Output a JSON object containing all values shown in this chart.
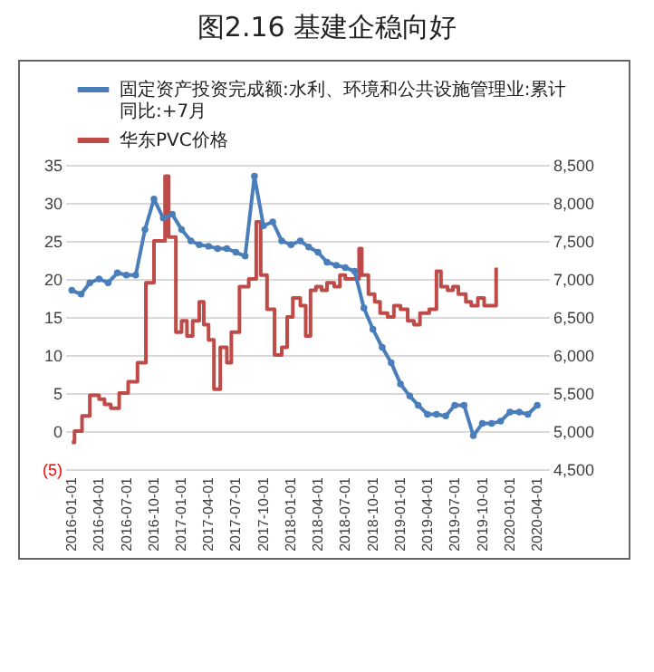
{
  "chart_data": {
    "type": "line",
    "title": "图2.16  基建企稳向好",
    "ylim": [
      -5,
      35
    ],
    "yticks": [
      {
        "value": -5,
        "label": "(5)"
      },
      0,
      5,
      10,
      15,
      20,
      25,
      30,
      35
    ],
    "y2lim": [
      4500,
      8500
    ],
    "y2ticks": [
      {
        "value": 4500,
        "label": "4,500"
      },
      {
        "value": 5000,
        "label": "5,000"
      },
      {
        "value": 5500,
        "label": "5,500"
      },
      {
        "value": 6000,
        "label": "6,000"
      },
      {
        "value": 6500,
        "label": "6,500"
      },
      {
        "value": 7000,
        "label": "7,000"
      },
      {
        "value": 7500,
        "label": "7,500"
      },
      {
        "value": 8000,
        "label": "8,000"
      },
      {
        "value": 8500,
        "label": "8,500"
      }
    ],
    "xlim": [
      "2015-12-10",
      "2020-05-10"
    ],
    "xticks": [
      "2016-01-01",
      "2016-04-01",
      "2016-07-01",
      "2016-10-01",
      "2017-01-01",
      "2017-04-01",
      "2017-07-01",
      "2017-10-01",
      "2018-01-01",
      "2018-04-01",
      "2018-07-01",
      "2018-10-01",
      "2019-01-01",
      "2019-04-01",
      "2019-07-01",
      "2019-10-01",
      "2020-01-01",
      "2020-04-01"
    ],
    "grid": "y",
    "legend": "top left",
    "series": [
      {
        "name": "固定资产投资完成额:水利、环境和公共设施管理业:累计同比:+7月",
        "color": "#4a7ebb",
        "type": "line",
        "marker": "circle",
        "x": [
          "2016-01",
          "2016-02",
          "2016-03",
          "2016-04",
          "2016-05",
          "2016-06",
          "2016-07",
          "2016-08",
          "2016-09",
          "2016-10",
          "2016-11",
          "2016-12",
          "2017-01",
          "2017-02",
          "2017-03",
          "2017-04",
          "2017-05",
          "2017-06",
          "2017-07",
          "2017-08",
          "2017-09",
          "2017-10",
          "2017-11",
          "2017-12",
          "2018-01",
          "2018-02",
          "2018-03",
          "2018-04",
          "2018-05",
          "2018-06",
          "2018-07",
          "2018-08",
          "2018-09",
          "2018-10",
          "2018-11",
          "2018-12",
          "2019-01",
          "2019-02",
          "2019-03",
          "2019-04",
          "2019-05",
          "2019-06",
          "2019-07",
          "2019-08",
          "2019-09",
          "2019-10",
          "2019-11",
          "2019-12",
          "2020-01",
          "2020-02",
          "2020-03",
          "2020-04"
        ],
        "values": [
          18.5,
          18,
          19.5,
          20,
          19.5,
          20.8,
          20.5,
          20.5,
          26.5,
          30.5,
          28,
          28.5,
          26.5,
          25,
          24.5,
          24.3,
          24,
          24,
          23.5,
          23,
          33.5,
          27,
          27.5,
          25,
          24.5,
          25,
          24.2,
          23.5,
          22.2,
          21.8,
          21.5,
          21,
          16.2,
          13.4,
          11,
          9,
          6.2,
          4.6,
          3.4,
          2.2,
          2.2,
          2,
          3.4,
          3.4,
          -0.6,
          1,
          1,
          1.3,
          2.5,
          2.5,
          2.2,
          3.4
        ]
      },
      {
        "name": "华东PVC价格",
        "color": "#be4b48",
        "type": "step",
        "axis": "y2",
        "x": [
          "2016-01-01",
          "2016-01-10",
          "2016-02-04",
          "2016-03-01",
          "2016-04-01",
          "2016-04-19",
          "2016-05-10",
          "2016-06-07",
          "2016-07-07",
          "2016-08-07",
          "2016-09-04",
          "2016-10-01",
          "2016-11-07",
          "2016-11-19",
          "2016-12-13",
          "2017-01-01",
          "2017-01-19",
          "2017-02-07",
          "2017-03-01",
          "2017-03-16",
          "2017-04-01",
          "2017-04-19",
          "2017-05-10",
          "2017-06-01",
          "2017-06-16",
          "2017-07-13",
          "2017-08-13",
          "2017-09-07",
          "2017-09-22",
          "2017-10-13",
          "2017-11-07",
          "2017-12-01",
          "2017-12-19",
          "2018-01-07",
          "2018-02-01",
          "2018-02-19",
          "2018-03-07",
          "2018-03-25",
          "2018-04-13",
          "2018-05-01",
          "2018-05-25",
          "2018-06-13",
          "2018-07-01",
          "2018-08-16",
          "2018-08-25",
          "2018-09-16",
          "2018-10-07",
          "2018-10-25",
          "2018-11-19",
          "2018-12-10",
          "2019-01-01",
          "2019-01-25",
          "2019-02-15",
          "2019-03-07",
          "2019-04-07",
          "2019-05-01",
          "2019-05-16",
          "2019-06-07",
          "2019-06-25",
          "2019-07-13",
          "2019-08-07",
          "2019-08-25",
          "2019-09-16",
          "2019-10-07",
          "2019-11-16"
        ],
        "values": [
          4850,
          5000,
          5200,
          5470,
          5420,
          5350,
          5300,
          5500,
          5650,
          5900,
          6950,
          7500,
          8350,
          7550,
          6300,
          6450,
          6250,
          6450,
          6700,
          6400,
          6200,
          5550,
          6100,
          5900,
          6300,
          6900,
          7000,
          7750,
          7050,
          6600,
          6000,
          6100,
          6500,
          6750,
          6650,
          6250,
          6850,
          6900,
          6850,
          6950,
          6900,
          7050,
          7000,
          7400,
          7050,
          6800,
          6700,
          6550,
          6500,
          6650,
          6600,
          6450,
          6400,
          6550,
          6600,
          7100,
          6900,
          6850,
          6900,
          6800,
          6700,
          6650,
          6750,
          6650,
          7150
        ]
      }
    ]
  }
}
